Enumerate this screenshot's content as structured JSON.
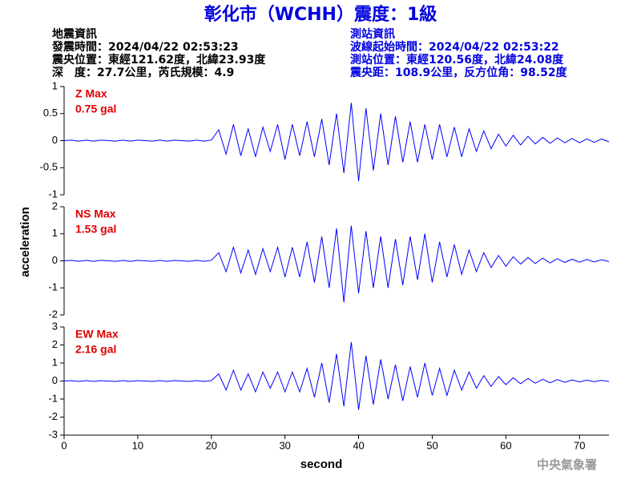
{
  "header": {
    "title": "彰化市（WCHH）震度：1級",
    "left": [
      "地震資訊",
      "發震時間：2024/04/22 02:53:23",
      "震央位置：東經121.62度，北緯23.93度",
      "深　度：27.7公里，芮氏規模：4.9"
    ],
    "right": [
      "測站資訊",
      "波線起始時間：2024/04/22 02:53:22",
      "測站位置：東經120.56度，北緯24.08度",
      "震央距：108.9公里，反方位角：98.52度"
    ]
  },
  "axes": {
    "xlabel": "second",
    "ylabel": "acceleration"
  },
  "footer": "中央氣象署",
  "chart_data": [
    {
      "type": "line",
      "color": "#0000ff",
      "annotation_color": "#e00000",
      "annotation": [
        "Z Max",
        "0.75 gal"
      ],
      "xlim": [
        0,
        74
      ],
      "ylim": [
        -1,
        1
      ],
      "yticks": [
        -1,
        -0.5,
        0,
        0.5,
        1
      ],
      "x": [
        0,
        1,
        2,
        3,
        4,
        5,
        6,
        7,
        8,
        9,
        10,
        11,
        12,
        13,
        14,
        15,
        16,
        17,
        18,
        19,
        20,
        21,
        22,
        23,
        24,
        25,
        26,
        27,
        28,
        29,
        30,
        31,
        32,
        33,
        34,
        35,
        36,
        37,
        38,
        39,
        40,
        41,
        42,
        43,
        44,
        45,
        46,
        47,
        48,
        49,
        50,
        51,
        52,
        53,
        54,
        55,
        56,
        57,
        58,
        59,
        60,
        61,
        62,
        63,
        64,
        65,
        66,
        67,
        68,
        69,
        70,
        71,
        72,
        73,
        74
      ],
      "values": [
        0,
        0.01,
        -0.01,
        0.01,
        -0.01,
        0.01,
        0,
        -0.01,
        0.01,
        -0.01,
        0.01,
        0,
        -0.01,
        0.01,
        -0.01,
        0.01,
        0,
        -0.01,
        0.01,
        -0.01,
        0.01,
        0.2,
        -0.25,
        0.3,
        -0.28,
        0.22,
        -0.3,
        0.25,
        -0.2,
        0.3,
        -0.35,
        0.3,
        -0.28,
        0.35,
        -0.3,
        0.4,
        -0.45,
        0.5,
        -0.6,
        0.7,
        -0.75,
        0.6,
        -0.55,
        0.5,
        -0.45,
        0.45,
        -0.4,
        0.35,
        -0.4,
        0.3,
        -0.35,
        0.3,
        -0.3,
        0.25,
        -0.3,
        0.22,
        -0.2,
        0.18,
        -0.15,
        0.12,
        -0.1,
        0.1,
        -0.08,
        0.08,
        -0.06,
        0.06,
        -0.05,
        0.05,
        -0.04,
        0.04,
        -0.04,
        0.03,
        -0.03,
        0.03,
        -0.02
      ]
    },
    {
      "type": "line",
      "color": "#0000ff",
      "annotation_color": "#e00000",
      "annotation": [
        "NS Max",
        "1.53 gal"
      ],
      "xlim": [
        0,
        74
      ],
      "ylim": [
        -2,
        2
      ],
      "yticks": [
        -2,
        -1,
        0,
        1,
        2
      ],
      "x": [
        0,
        1,
        2,
        3,
        4,
        5,
        6,
        7,
        8,
        9,
        10,
        11,
        12,
        13,
        14,
        15,
        16,
        17,
        18,
        19,
        20,
        21,
        22,
        23,
        24,
        25,
        26,
        27,
        28,
        29,
        30,
        31,
        32,
        33,
        34,
        35,
        36,
        37,
        38,
        39,
        40,
        41,
        42,
        43,
        44,
        45,
        46,
        47,
        48,
        49,
        50,
        51,
        52,
        53,
        54,
        55,
        56,
        57,
        58,
        59,
        60,
        61,
        62,
        63,
        64,
        65,
        66,
        67,
        68,
        69,
        70,
        71,
        72,
        73,
        74
      ],
      "values": [
        0,
        0.02,
        -0.02,
        0.02,
        -0.02,
        0.02,
        0,
        -0.02,
        0.02,
        -0.02,
        0.02,
        0,
        -0.02,
        0.02,
        -0.02,
        0.02,
        0,
        -0.02,
        0.02,
        -0.02,
        0.02,
        0.3,
        -0.4,
        0.5,
        -0.45,
        0.4,
        -0.5,
        0.45,
        -0.4,
        0.5,
        -0.6,
        0.5,
        -0.6,
        0.7,
        -0.8,
        0.9,
        -1.0,
        1.2,
        -1.53,
        1.3,
        -1.2,
        1.1,
        -1.0,
        0.9,
        -1.0,
        0.8,
        -0.9,
        0.9,
        -0.7,
        1.0,
        -0.8,
        0.7,
        -0.6,
        0.6,
        -0.5,
        0.4,
        -0.4,
        0.3,
        -0.25,
        0.2,
        -0.2,
        0.15,
        -0.12,
        0.12,
        -0.1,
        0.1,
        -0.08,
        0.08,
        -0.06,
        0.06,
        -0.05,
        0.05,
        -0.04,
        0.04,
        -0.03
      ]
    },
    {
      "type": "line",
      "color": "#0000ff",
      "annotation_color": "#e00000",
      "annotation": [
        "EW Max",
        "2.16 gal"
      ],
      "xlim": [
        0,
        74
      ],
      "ylim": [
        -3,
        3
      ],
      "yticks": [
        -3,
        -2,
        -1,
        0,
        1,
        2,
        3
      ],
      "xticks": [
        0,
        10,
        20,
        30,
        40,
        50,
        60,
        70
      ],
      "x": [
        0,
        1,
        2,
        3,
        4,
        5,
        6,
        7,
        8,
        9,
        10,
        11,
        12,
        13,
        14,
        15,
        16,
        17,
        18,
        19,
        20,
        21,
        22,
        23,
        24,
        25,
        26,
        27,
        28,
        29,
        30,
        31,
        32,
        33,
        34,
        35,
        36,
        37,
        38,
        39,
        40,
        41,
        42,
        43,
        44,
        45,
        46,
        47,
        48,
        49,
        50,
        51,
        52,
        53,
        54,
        55,
        56,
        57,
        58,
        59,
        60,
        61,
        62,
        63,
        64,
        65,
        66,
        67,
        68,
        69,
        70,
        71,
        72,
        73,
        74
      ],
      "values": [
        0,
        0.02,
        -0.02,
        0.02,
        -0.02,
        0.02,
        0,
        -0.02,
        0.02,
        -0.02,
        0.02,
        0,
        -0.02,
        0.02,
        -0.02,
        0.02,
        0,
        -0.02,
        0.02,
        -0.02,
        0.02,
        0.4,
        -0.5,
        0.6,
        -0.5,
        0.4,
        -0.6,
        0.5,
        -0.4,
        0.5,
        -0.6,
        0.5,
        -0.6,
        0.7,
        -0.9,
        1.0,
        -1.2,
        1.5,
        -1.4,
        2.16,
        -1.6,
        1.4,
        -1.3,
        1.2,
        -1.0,
        0.9,
        -1.1,
        0.8,
        -0.9,
        1.0,
        -0.8,
        0.7,
        -0.8,
        0.6,
        -0.5,
        0.5,
        -0.4,
        0.3,
        -0.3,
        0.25,
        -0.2,
        0.18,
        -0.15,
        0.14,
        -0.12,
        0.1,
        -0.1,
        0.08,
        -0.07,
        0.06,
        -0.05,
        0.05,
        -0.04,
        0.04,
        -0.03
      ]
    }
  ]
}
